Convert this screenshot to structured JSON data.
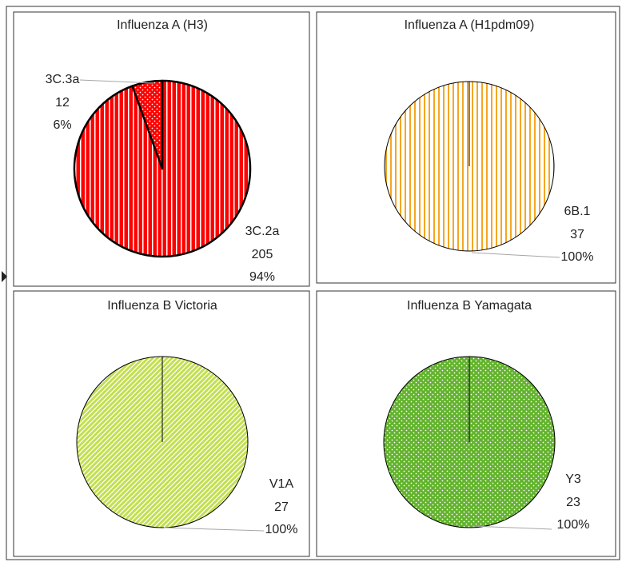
{
  "chart_data": [
    {
      "type": "pie",
      "title": "Influenza A (H3)",
      "categories": [
        "3C.2a",
        "3C.3a"
      ],
      "values": [
        205,
        12
      ],
      "percent_labels": [
        "94%",
        "6%"
      ],
      "colors": [
        "#ff0000",
        "#ff0000"
      ],
      "patterns": [
        "vertical-stripes",
        "dots"
      ]
    },
    {
      "type": "pie",
      "title": "Influenza A (H1pdm09)",
      "categories": [
        "6B.1"
      ],
      "values": [
        37
      ],
      "percent_labels": [
        "100%"
      ],
      "colors": [
        "#f5a623"
      ],
      "patterns": [
        "light-vertical-stripes"
      ]
    },
    {
      "type": "pie",
      "title": "Influenza B Victoria",
      "categories": [
        "V1A"
      ],
      "values": [
        27
      ],
      "percent_labels": [
        "100%"
      ],
      "colors": [
        "#c2df4f"
      ],
      "patterns": [
        "diagonal-stripes"
      ]
    },
    {
      "type": "pie",
      "title": "Influenza B Yamagata",
      "categories": [
        "Y3"
      ],
      "values": [
        23
      ],
      "percent_labels": [
        "100%"
      ],
      "colors": [
        "#62b32c"
      ],
      "patterns": [
        "dots"
      ]
    }
  ]
}
